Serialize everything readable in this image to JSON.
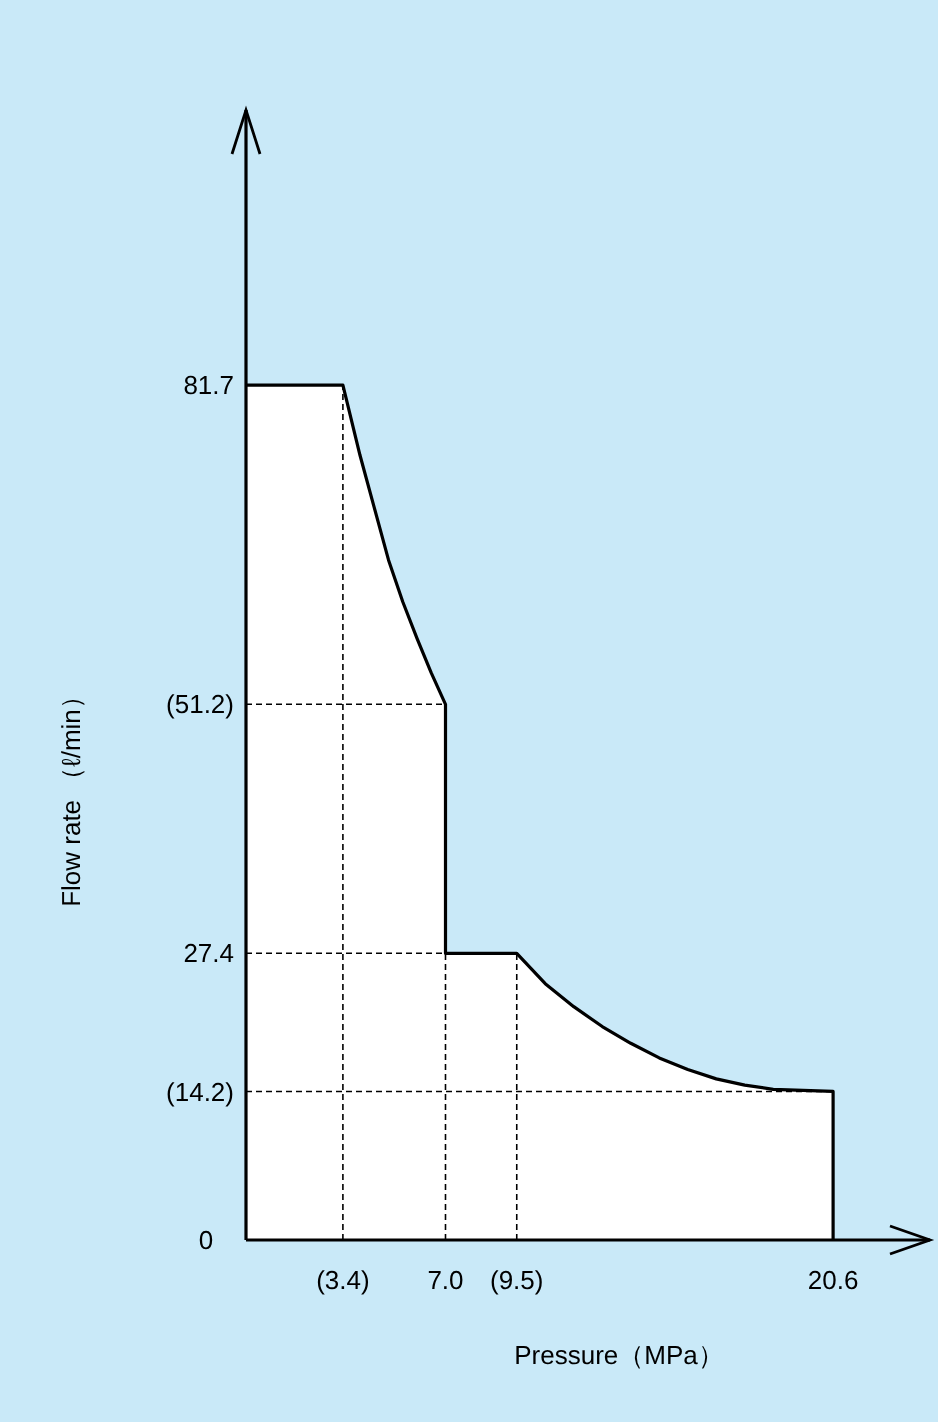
{
  "chart_data": {
    "type": "area",
    "xlabel": "Pressure（MPa）",
    "ylabel": "Flow rate （ℓ/min）",
    "xlim": [
      0,
      24
    ],
    "ylim": [
      0,
      108
    ],
    "xticks": [
      {
        "value": 3.4,
        "label": "(3.4)"
      },
      {
        "value": 7.0,
        "label": "7.0"
      },
      {
        "value": 9.5,
        "label": "(9.5)"
      },
      20.6
    ],
    "yticks": [
      0,
      27.4,
      {
        "value": 14.2,
        "label": "(14.2)"
      },
      {
        "value": 51.2,
        "label": "(51.2)"
      },
      81.7
    ],
    "series": [
      {
        "color": "#ffffff",
        "x": [
          0,
          3.4,
          4,
          4.5,
          5,
          5.5,
          6,
          6.5,
          7,
          7,
          9.5,
          10.5,
          11.5,
          12.5,
          13.5,
          14.5,
          15.5,
          16.5,
          17.5,
          18.5,
          20.6,
          20.6
        ],
        "values": [
          81.7,
          81.7,
          75,
          70,
          65,
          61,
          57.5,
          54.2,
          51.2,
          27.4,
          27.4,
          24.5,
          22.3,
          20.4,
          18.8,
          17.4,
          16.3,
          15.4,
          14.8,
          14.4,
          14.2,
          0
        ]
      }
    ],
    "ref_lines": [
      {
        "axis": "x",
        "value": 3.4,
        "line_style": "dashed"
      },
      {
        "axis": "x",
        "value": 7.0,
        "line_style": "dashed"
      },
      {
        "axis": "x",
        "value": 9.5,
        "line_style": "dashed"
      },
      {
        "axis": "y",
        "value": 51.2,
        "line_style": "dashed"
      },
      {
        "axis": "y",
        "value": 27.4,
        "line_style": "dashed"
      },
      {
        "axis": "y",
        "value": 14.2,
        "line_style": "dashed"
      }
    ]
  }
}
